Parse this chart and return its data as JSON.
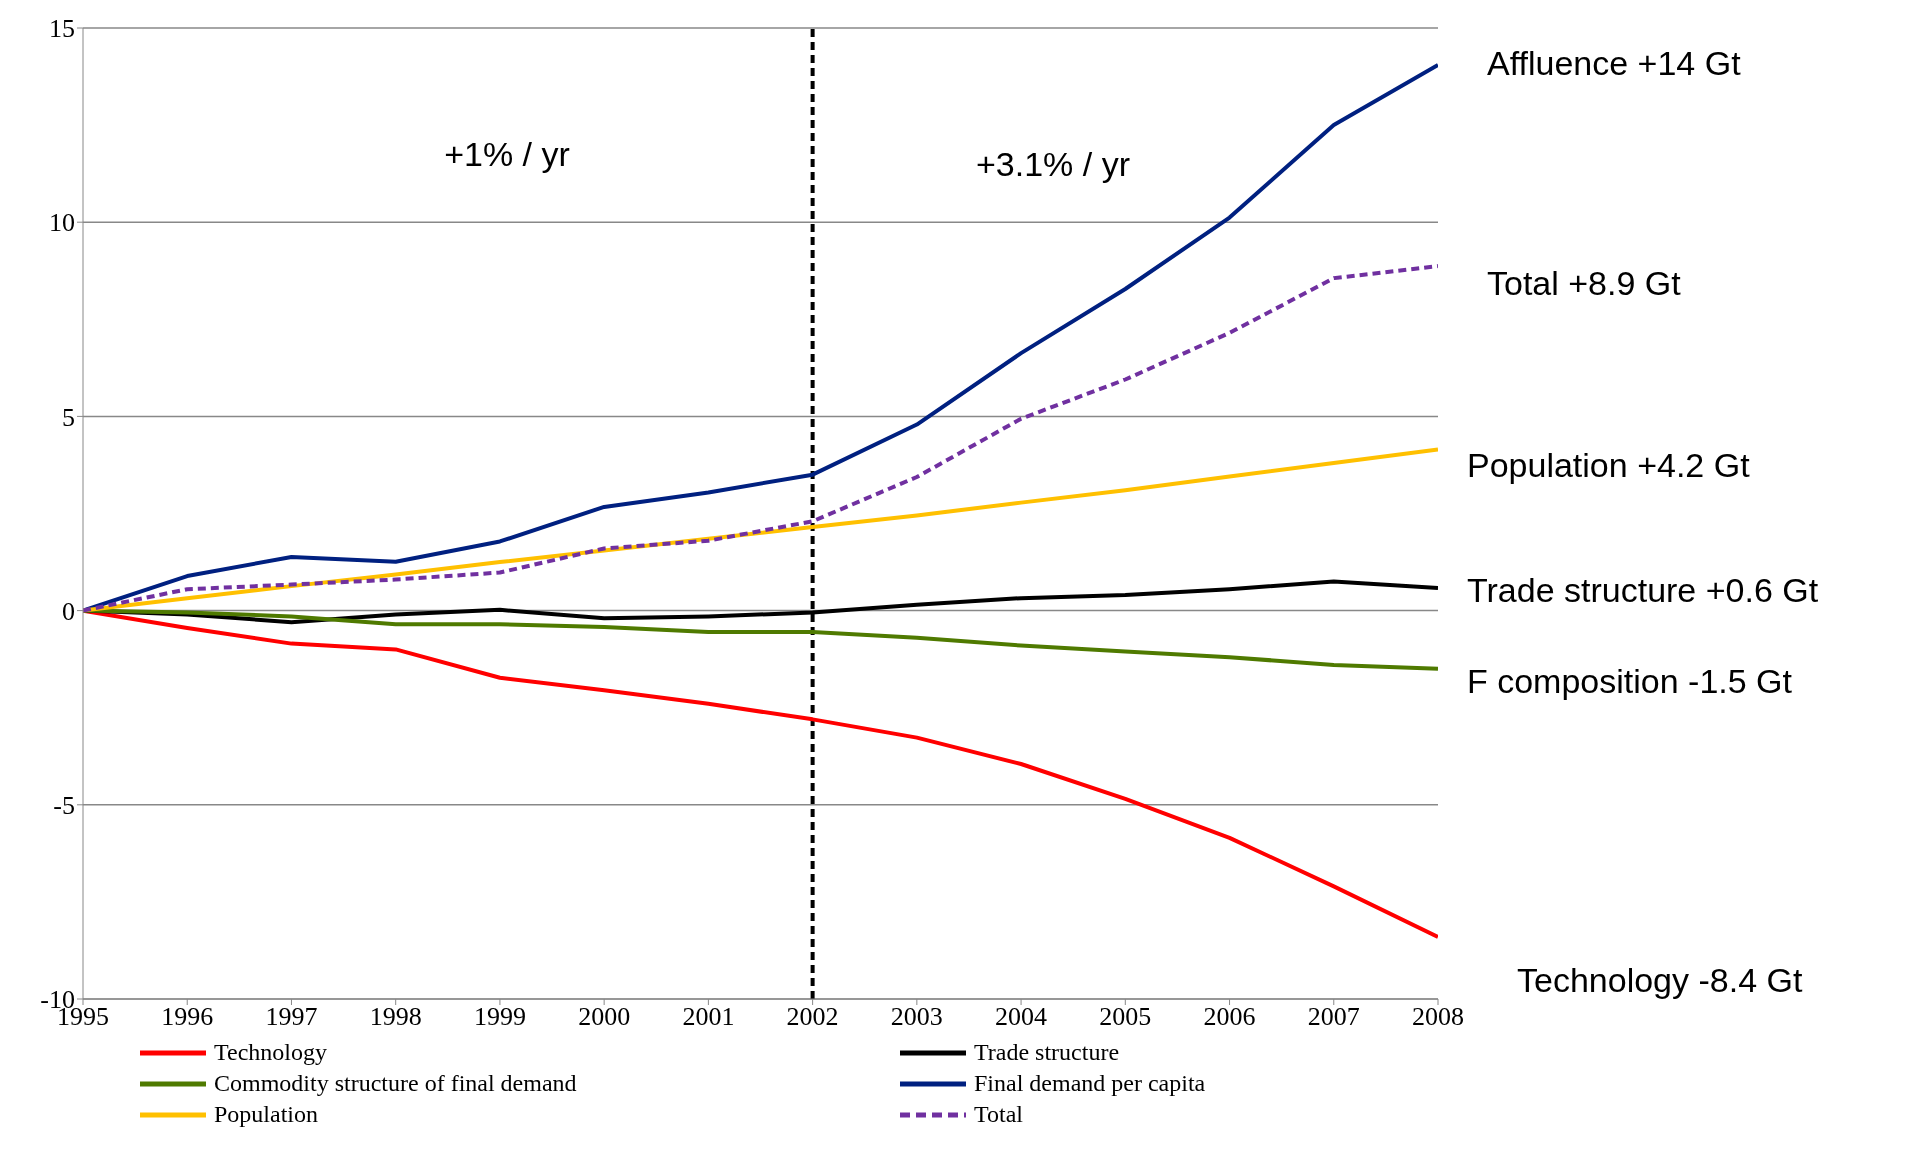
{
  "chart_data": {
    "type": "line",
    "categories": [
      "1995",
      "1996",
      "1997",
      "1998",
      "1999",
      "2000",
      "2001",
      "2002",
      "2003",
      "2004",
      "2005",
      "2006",
      "2007",
      "2008"
    ],
    "series": [
      {
        "name": "Technology",
        "color": "#ff0000",
        "values": [
          0,
          -0.45,
          -0.85,
          -1.0,
          -1.73,
          -2.05,
          -2.4,
          -2.8,
          -3.27,
          -3.95,
          -4.85,
          -5.85,
          -7.1,
          -8.4
        ]
      },
      {
        "name": "Trade structure",
        "color": "#000000",
        "values": [
          0,
          -0.1,
          -0.3,
          -0.1,
          0.02,
          -0.2,
          -0.15,
          -0.05,
          0.15,
          0.32,
          0.4,
          0.55,
          0.75,
          0.58
        ]
      },
      {
        "name": "Commodity structure of final demand",
        "color": "#4f7a00",
        "values": [
          0,
          -0.05,
          -0.15,
          -0.35,
          -0.35,
          -0.42,
          -0.55,
          -0.55,
          -0.7,
          -0.9,
          -1.05,
          -1.2,
          -1.4,
          -1.5
        ]
      },
      {
        "name": "Final demand per capita",
        "color": "#002080",
        "values": [
          0,
          0.89,
          1.38,
          1.26,
          1.78,
          2.67,
          3.04,
          3.5,
          4.79,
          6.63,
          8.28,
          10.12,
          12.5,
          14.05
        ]
      },
      {
        "name": "Population",
        "color": "#ffc000",
        "values": [
          0,
          0.32,
          0.63,
          0.93,
          1.25,
          1.55,
          1.85,
          2.15,
          2.45,
          2.78,
          3.1,
          3.45,
          3.8,
          4.15
        ]
      },
      {
        "name": "Total",
        "color": "#7030a0",
        "line_style": "dashed",
        "values": [
          0,
          0.55,
          0.67,
          0.8,
          0.98,
          1.6,
          1.8,
          2.3,
          3.44,
          4.94,
          5.95,
          7.15,
          8.56,
          8.87
        ]
      }
    ],
    "ylim": [
      -10,
      15
    ],
    "yticks": [
      -10,
      -5,
      0,
      5,
      10,
      15
    ],
    "grid": "y",
    "marker": "none",
    "legend": "bottom",
    "ref_lines": [
      {
        "axis": "x",
        "value": "2002",
        "color": "#000000",
        "line_style": "dashed"
      }
    ],
    "annotations": [
      "+1% / yr",
      "+3.1% / yr",
      "Affluence +14 Gt",
      "Total +8.9 Gt",
      "Population +4.2 Gt",
      "Trade structure +0.6 Gt",
      "F composition -1.5 Gt",
      "Technology -8.4 Gt"
    ]
  }
}
